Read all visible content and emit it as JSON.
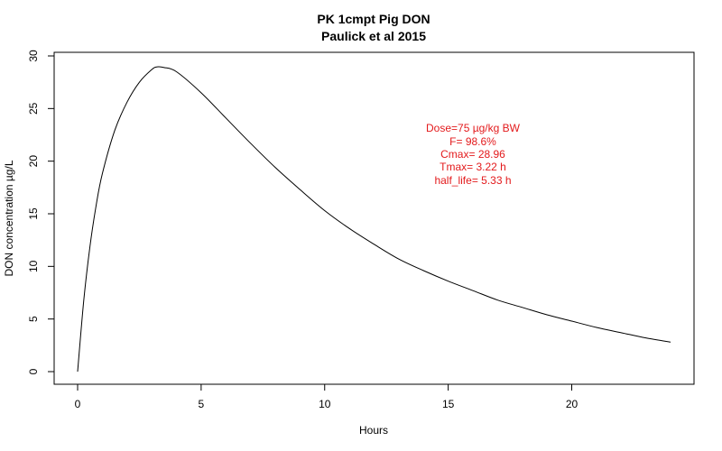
{
  "chart_data": {
    "type": "line",
    "title": "PK 1cmpt Pig DON",
    "subtitle": "Paulick et al 2015",
    "xlabel": "Hours",
    "ylabel": "DON concentration µg/L",
    "xlim": [
      0,
      24
    ],
    "ylim": [
      0,
      30
    ],
    "xticks": [
      0,
      5,
      10,
      15,
      20
    ],
    "yticks": [
      0,
      5,
      10,
      15,
      20,
      25,
      30
    ],
    "grid": false,
    "line_color": "#000000",
    "annotation_color": "#e31a1c",
    "annotations": [
      "Dose=75 µg/kg BW",
      "F= 98.6%",
      "Cmax= 28.96",
      "Tmax= 3.22 h",
      "half_life= 5.33 h"
    ],
    "series": [
      {
        "x": [
          0,
          0.25,
          0.5,
          0.75,
          1,
          1.5,
          2,
          2.5,
          3,
          3.22,
          3.5,
          4,
          5,
          6,
          7,
          8,
          9,
          10,
          11,
          12,
          13,
          14,
          15,
          16,
          17,
          18,
          19,
          20,
          21,
          22,
          23,
          24
        ],
        "values": [
          0,
          6.8,
          11.9,
          15.8,
          18.8,
          22.9,
          25.6,
          27.5,
          28.7,
          28.96,
          28.9,
          28.5,
          26.5,
          24.1,
          21.7,
          19.4,
          17.3,
          15.3,
          13.6,
          12.1,
          10.7,
          9.6,
          8.6,
          7.7,
          6.8,
          6.1,
          5.4,
          4.8,
          4.2,
          3.7,
          3.2,
          2.8
        ]
      }
    ]
  }
}
